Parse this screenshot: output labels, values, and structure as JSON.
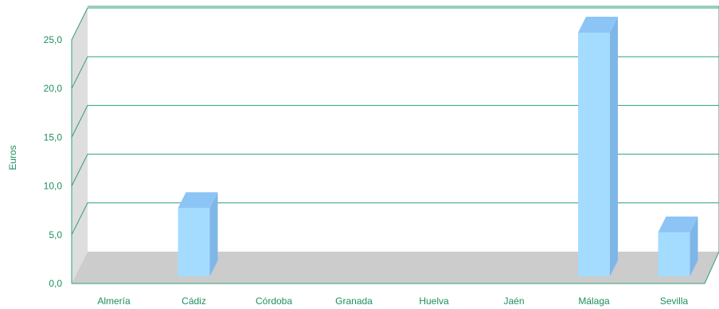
{
  "chart_data": {
    "type": "bar",
    "title": "",
    "xlabel": "",
    "ylabel": "Euros",
    "categories": [
      "Almería",
      "Cádiz",
      "Córdoba",
      "Granada",
      "Huelva",
      "Jaén",
      "Málaga",
      "Sevilla"
    ],
    "values": [
      0,
      7.0,
      0,
      0,
      0,
      0,
      25.0,
      4.5
    ],
    "ylim": [
      0,
      25
    ],
    "y_ticks": [
      "0,0",
      "5,0",
      "10,0",
      "15,0",
      "20,0",
      "25,0"
    ],
    "y_tick_values": [
      0,
      5,
      10,
      15,
      20,
      25
    ],
    "grid": true,
    "style": "3d-bar",
    "colors": {
      "bar_front": "#a3dcff",
      "bar_top": "#8cc4f5",
      "bar_side": "#7fb6e8",
      "gridline": "#2e9f7a",
      "floor": "#cccccc",
      "back_wall_side": "#dedede",
      "text": "#1f8f5f"
    }
  }
}
